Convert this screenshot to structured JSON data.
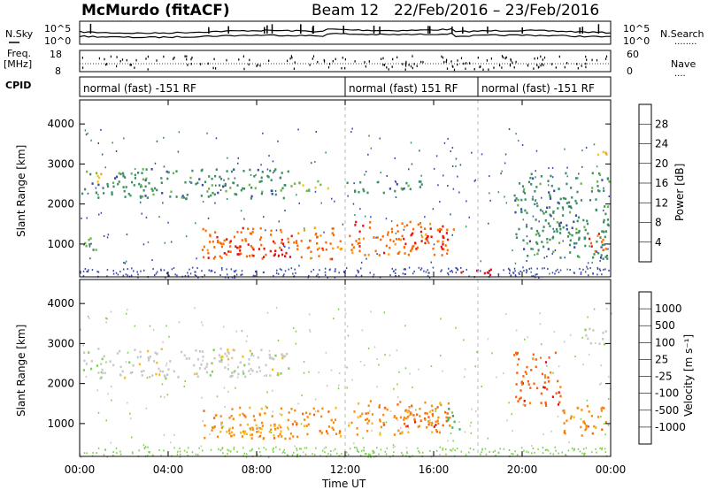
{
  "header": {
    "station": "McMurdo (fitACF)",
    "beam": "Beam 12",
    "date_range": "22/Feb/2016 – 23/Feb/2016"
  },
  "side_labels": {
    "nsky": "N.Sky",
    "freq": "Freq.",
    "freq_unit": "[MHz]",
    "cpid": "CPID",
    "nsearch": "N.Search",
    "nave": "Nave",
    "nsky_dots": "........",
    "nave_dots": "...."
  },
  "noise_panel": {
    "left_ticks": [
      "10^5",
      "10^0"
    ],
    "right_ticks": [
      "10^5",
      "10^0"
    ]
  },
  "freq_panel": {
    "left_ticks": [
      "18",
      "8"
    ],
    "right_ticks": [
      "60",
      "0"
    ]
  },
  "cpid_panel": {
    "segments": [
      {
        "label": "normal (fast) -151 RF",
        "start_hour": 0,
        "end_hour": 12
      },
      {
        "label": "normal (fast) 151 RF",
        "start_hour": 12,
        "end_hour": 18
      },
      {
        "label": "normal (fast) -151 RF",
        "start_hour": 18,
        "end_hour": 24
      }
    ]
  },
  "chart_data": [
    {
      "type": "heatmap",
      "title": "",
      "xlabel": "",
      "ylabel": "Slant Range [km]",
      "xlim": [
        0,
        24
      ],
      "ylim": [
        180,
        4600
      ],
      "yticks": [
        1000,
        2000,
        3000,
        4000
      ],
      "colorbar": {
        "label": "Power [dB]",
        "ticks": [
          "28",
          "24",
          "20",
          "16",
          "12",
          "8",
          "4"
        ],
        "colors": [
          "#e81010",
          "#ff6a00",
          "#ff9a10",
          "#f7c21c",
          "#6db44a",
          "#3d8f63",
          "#3d4aa8",
          "#1a1aff"
        ]
      },
      "echo_regions": [
        {
          "x": [
            0.0,
            9.5
          ],
          "y": [
            2150,
            2900
          ],
          "level": 2
        },
        {
          "x": [
            0.3,
            1.0
          ],
          "y": [
            2500,
            2800
          ],
          "level": 4
        },
        {
          "x": [
            5.5,
            11.8
          ],
          "y": [
            650,
            1450
          ],
          "level": 6
        },
        {
          "x": [
            6.3,
            9.5
          ],
          "y": [
            700,
            1050
          ],
          "level": 7
        },
        {
          "x": [
            9.0,
            11.3
          ],
          "y": [
            2350,
            2600
          ],
          "level": 3
        },
        {
          "x": [
            12.0,
            15.5
          ],
          "y": [
            2300,
            2600
          ],
          "level": 2
        },
        {
          "x": [
            12.1,
            16.9
          ],
          "y": [
            750,
            1600
          ],
          "level": 6
        },
        {
          "x": [
            14.4,
            16.6
          ],
          "y": [
            900,
            1350
          ],
          "level": 7
        },
        {
          "x": [
            0.0,
            0.8
          ],
          "y": [
            800,
            1200
          ],
          "level": 3
        },
        {
          "x": [
            17.2,
            18.7
          ],
          "y": [
            250,
            450
          ],
          "level": 7
        },
        {
          "x": [
            19.6,
            23.9
          ],
          "y": [
            650,
            2800
          ],
          "level": 2
        },
        {
          "x": [
            23.0,
            23.9
          ],
          "y": [
            800,
            1300
          ],
          "level": 6
        },
        {
          "x": [
            23.2,
            23.9
          ],
          "y": [
            3200,
            3450
          ],
          "level": 4
        }
      ]
    },
    {
      "type": "heatmap",
      "title": "",
      "xlabel": "Time UT",
      "ylabel": "Slant Range [km]",
      "xlim": [
        0,
        24
      ],
      "ylim": [
        180,
        4600
      ],
      "yticks": [
        1000,
        2000,
        3000,
        4000
      ],
      "xticks": [
        "00:00",
        "04:00",
        "08:00",
        "12:00",
        "16:00",
        "20:00",
        "00:00"
      ],
      "colorbar": {
        "label": "Velocity [m s⁻¹]",
        "ticks": [
          "1000",
          "500",
          "100",
          "25",
          "-25",
          "-100",
          "-500",
          "-1000"
        ],
        "colors": [
          "#2230c8",
          "#3f9a5a",
          "#3fb65a",
          "#7cd24a",
          "#c8c8c8",
          "#f9ba1a",
          "#f98a10",
          "#f96010",
          "#e81010"
        ]
      },
      "echo_regions": [
        {
          "x": [
            0.0,
            9.5
          ],
          "y": [
            2150,
            2900
          ],
          "level": 4
        },
        {
          "x": [
            5.5,
            11.8
          ],
          "y": [
            650,
            1450
          ],
          "level": 6
        },
        {
          "x": [
            6.3,
            9.5
          ],
          "y": [
            700,
            1050
          ],
          "level": 5
        },
        {
          "x": [
            12.1,
            16.9
          ],
          "y": [
            750,
            1600
          ],
          "level": 6
        },
        {
          "x": [
            14.4,
            16.6
          ],
          "y": [
            900,
            1350
          ],
          "level": 7
        },
        {
          "x": [
            16.6,
            17.2
          ],
          "y": [
            800,
            1400
          ],
          "level": 2
        },
        {
          "x": [
            19.6,
            21.7
          ],
          "y": [
            1450,
            2800
          ],
          "level": 7
        },
        {
          "x": [
            21.8,
            23.9
          ],
          "y": [
            700,
            1500
          ],
          "level": 6
        },
        {
          "x": [
            22.6,
            23.9
          ],
          "y": [
            3000,
            3400
          ],
          "level": 4
        }
      ]
    }
  ]
}
